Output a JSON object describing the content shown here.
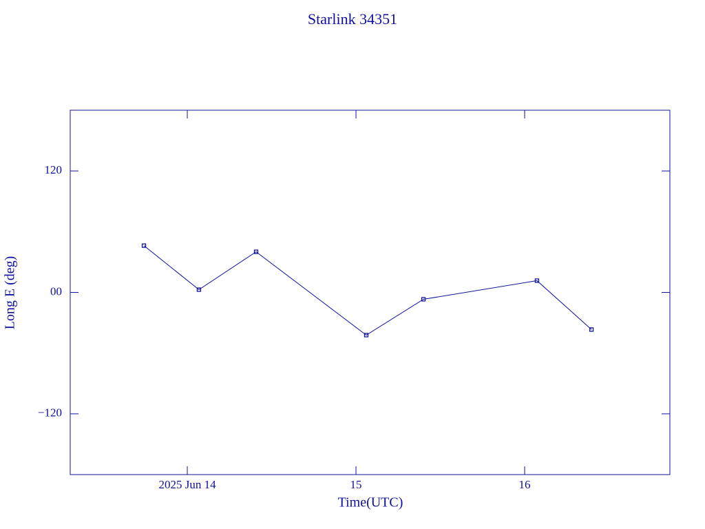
{
  "chart_data": {
    "type": "line",
    "title": "Starlink 34351",
    "x_label": "Time(UTC)",
    "y_label": "Long E (deg)",
    "x": [
      13.743,
      14.069,
      14.408,
      15.061,
      15.4,
      16.073,
      16.396
    ],
    "series": [
      {
        "name": "Starlink 34351",
        "color": "#1010a0",
        "values": [
          46.2,
          2.7,
          40.1,
          -42.2,
          -6.8,
          11.6,
          -36.7
        ]
      }
    ],
    "xlim": [
      13.306,
      16.861
    ],
    "xticks": [
      {
        "value": 14,
        "label": "2025 Jun 14"
      },
      15,
      16
    ],
    "ylim": [
      -180,
      180
    ],
    "yticks": [
      {
        "value": -120,
        "label": "−120"
      },
      {
        "value": 0,
        "label": "00"
      },
      120
    ]
  }
}
